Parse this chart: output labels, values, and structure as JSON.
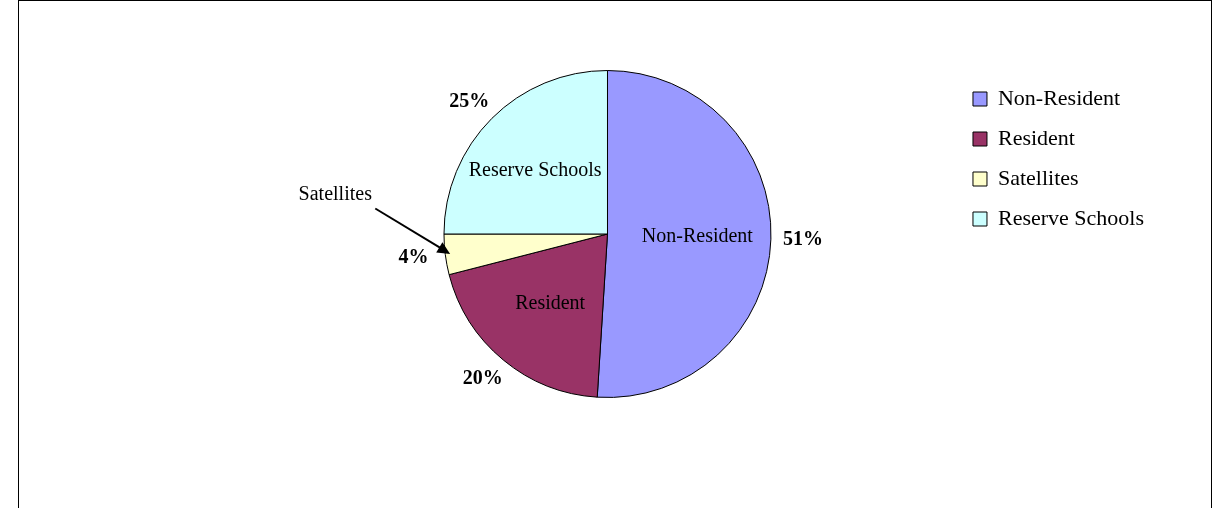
{
  "chart_data": {
    "type": "pie",
    "categories": [
      "Non-Resident",
      "Resident",
      "Satellites",
      "Reserve Schools"
    ],
    "values": [
      51,
      20,
      4,
      25
    ],
    "colors": [
      "#9999ff",
      "#993366",
      "#ffffcc",
      "#ccffff"
    ],
    "value_labels": [
      "51%",
      "20%",
      "4%",
      "25%"
    ],
    "legend": "right"
  }
}
